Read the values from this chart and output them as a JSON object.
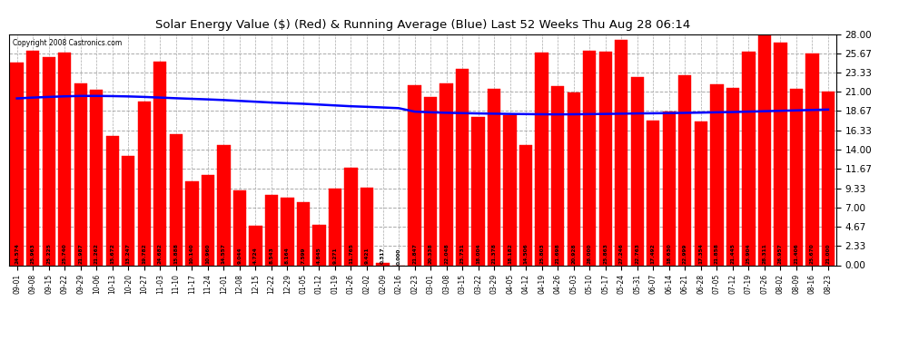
{
  "title": "Solar Energy Value ($) (Red) & Running Average (Blue) Last 52 Weeks Thu Aug 28 06:14",
  "copyright": "Copyright 2008 Castronics.com",
  "bar_color": "#FF0000",
  "line_color": "#0000FF",
  "background_color": "#FFFFFF",
  "grid_color": "#AAAAAA",
  "ylabel_right_values": [
    0.0,
    2.33,
    4.67,
    7.0,
    9.33,
    11.67,
    14.0,
    16.33,
    18.67,
    21.0,
    23.33,
    25.67,
    28.0
  ],
  "ylim": [
    0,
    28.0
  ],
  "categories": [
    "09-01",
    "09-08",
    "09-15",
    "09-22",
    "09-29",
    "10-06",
    "10-13",
    "10-20",
    "10-27",
    "11-03",
    "11-10",
    "11-17",
    "11-24",
    "12-01",
    "12-08",
    "12-15",
    "12-22",
    "12-29",
    "01-05",
    "01-12",
    "01-19",
    "01-26",
    "02-02",
    "02-09",
    "02-16",
    "02-23",
    "03-01",
    "03-08",
    "03-15",
    "03-22",
    "03-29",
    "04-05",
    "04-12",
    "04-19",
    "04-26",
    "05-03",
    "05-10",
    "05-17",
    "05-24",
    "05-31",
    "06-07",
    "06-14",
    "06-21",
    "06-28",
    "07-05",
    "07-12",
    "07-19",
    "07-26",
    "08-02",
    "08-09",
    "08-16",
    "08-23"
  ],
  "bar_values": [
    24.574,
    25.963,
    25.225,
    25.74,
    21.987,
    21.262,
    15.672,
    13.247,
    19.782,
    24.682,
    15.888,
    10.14,
    10.96,
    14.557,
    9.044,
    4.724,
    8.543,
    8.164,
    7.599,
    4.845,
    9.271,
    11.765,
    9.421,
    0.317,
    0.0,
    21.847,
    20.338,
    22.048,
    23.731,
    18.004,
    21.378,
    18.182,
    14.506,
    25.803,
    21.698,
    20.928,
    26.0,
    25.863,
    27.246,
    22.763,
    17.492,
    18.63,
    22.999,
    17.354,
    21.858,
    21.445,
    25.904,
    28.311,
    26.957,
    21.406,
    25.67,
    21.0
  ],
  "running_avg": [
    20.2,
    20.3,
    20.38,
    20.45,
    20.5,
    20.5,
    20.48,
    20.44,
    20.38,
    20.3,
    20.22,
    20.15,
    20.08,
    20.0,
    19.9,
    19.8,
    19.7,
    19.62,
    19.55,
    19.45,
    19.35,
    19.25,
    19.18,
    19.1,
    19.02,
    18.6,
    18.52,
    18.46,
    18.42,
    18.38,
    18.35,
    18.32,
    18.3,
    18.28,
    18.27,
    18.28,
    18.3,
    18.32,
    18.35,
    18.38,
    18.4,
    18.42,
    18.45,
    18.48,
    18.52,
    18.55,
    18.6,
    18.65,
    18.7,
    18.75,
    18.8,
    18.85
  ]
}
